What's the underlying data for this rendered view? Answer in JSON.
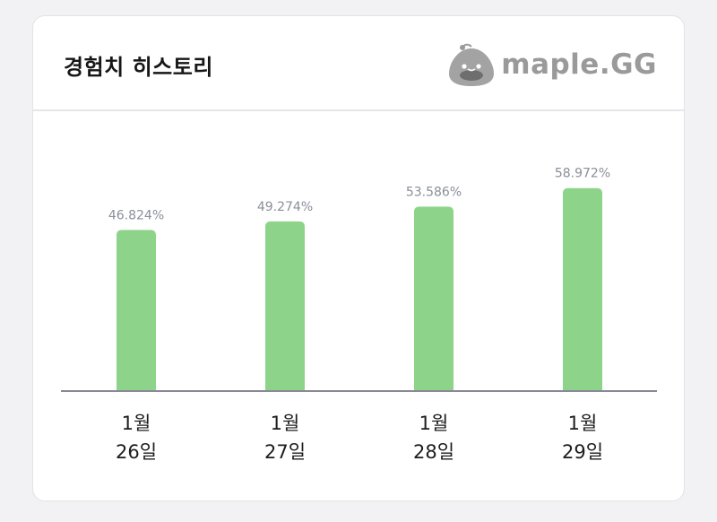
{
  "header": {
    "title": "경험치 히스토리",
    "logo_text": "maple.GG",
    "logo_icon": "slime-mascot-icon"
  },
  "colors": {
    "bar": "#8ed38a",
    "baseline": "#8a8a96",
    "value_label": "#8a8f99"
  },
  "chart_data": {
    "type": "bar",
    "title": "",
    "categories": [
      [
        "1월",
        "26일"
      ],
      [
        "1월",
        "27일"
      ],
      [
        "1월",
        "28일"
      ],
      [
        "1월",
        "29일"
      ]
    ],
    "values": [
      46.824,
      49.274,
      53.586,
      58.972
    ],
    "value_labels": [
      "46.824%",
      "49.274%",
      "53.586%",
      "58.972%"
    ],
    "unit": "%",
    "xlabel": "",
    "ylabel": "",
    "ylim": [
      0,
      70
    ],
    "grid": false,
    "legend": "none"
  }
}
